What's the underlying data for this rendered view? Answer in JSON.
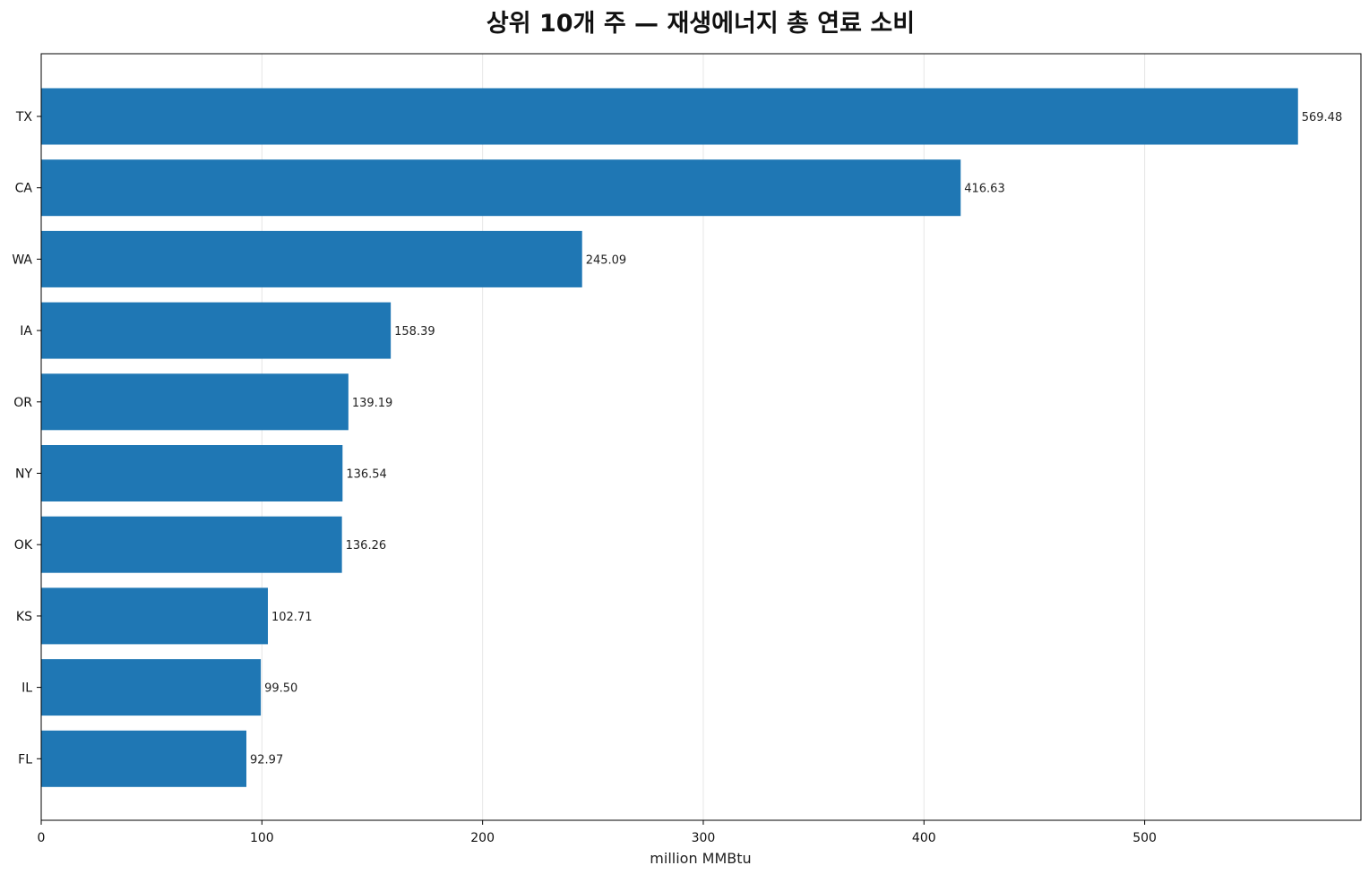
{
  "chart_data": {
    "type": "bar",
    "orientation": "horizontal",
    "title": "상위 10개 주 — 재생에너지 총 연료 소비",
    "xlabel": "million MMBtu",
    "ylabel": "",
    "categories": [
      "TX",
      "CA",
      "WA",
      "IA",
      "OR",
      "NY",
      "OK",
      "KS",
      "IL",
      "FL"
    ],
    "values": [
      569.48,
      416.63,
      245.09,
      158.39,
      139.19,
      136.54,
      136.26,
      102.71,
      99.5,
      92.97
    ],
    "value_labels": [
      "569.48",
      "416.63",
      "245.09",
      "158.39",
      "139.19",
      "136.54",
      "136.26",
      "102.71",
      "99.50",
      "92.97"
    ],
    "xlim": [
      0,
      598
    ],
    "xticks": [
      0,
      100,
      200,
      300,
      400,
      500
    ],
    "xtick_labels": [
      "0",
      "100",
      "200",
      "300",
      "400",
      "500"
    ],
    "grid": "x",
    "bar_color": "#1f77b4"
  }
}
